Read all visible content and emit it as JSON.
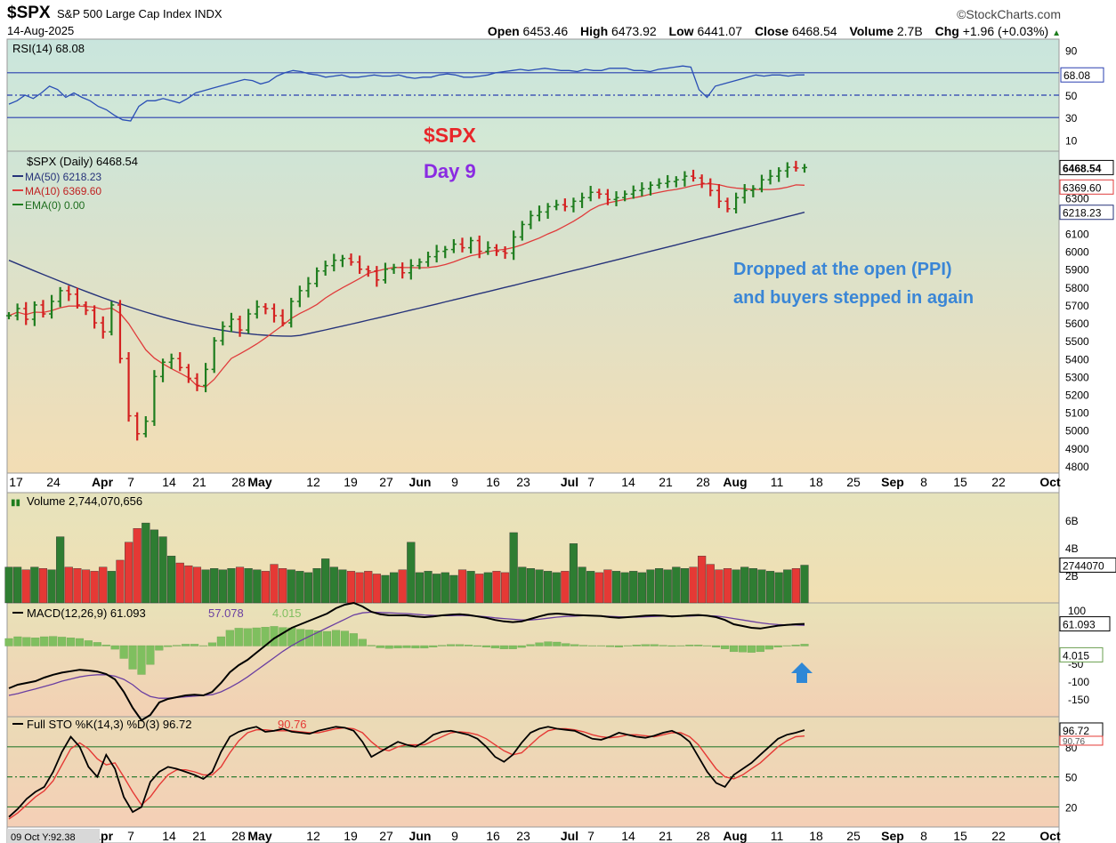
{
  "header": {
    "symbol": "$SPX",
    "name": "S&P 500 Large Cap Index",
    "exchange": "INDX",
    "date": "14-Aug-2025",
    "brand": "©StockCharts.com",
    "open_label": "Open",
    "open": "6453.46",
    "high_label": "High",
    "high": "6473.92",
    "low_label": "Low",
    "low": "6441.07",
    "close_label": "Close",
    "close": "6468.54",
    "volume_label": "Volume",
    "volume": "2.7B",
    "chg_label": "Chg",
    "chg": "+1.96 (+0.03%)"
  },
  "annotations": {
    "title1": "$SPX",
    "title2": "Day 9",
    "note_line1": "Dropped at the open (PPI)",
    "note_line2": "and buyers stepped in again",
    "colors": {
      "title1": "#e8262a",
      "title2": "#8a2be2",
      "note": "#3a86d6",
      "arrow": "#2e87d6"
    }
  },
  "chart_data": [
    {
      "type": "line",
      "panel": "rsi",
      "legend": "RSI(14) 68.08",
      "value": 68.08,
      "ylim": [
        0,
        100
      ],
      "y_ticks": [
        90,
        50,
        30,
        10
      ],
      "reference_lines": [
        70,
        50,
        30
      ],
      "x_index_range": [
        0,
        127
      ],
      "values": [
        42,
        45,
        50,
        47,
        52,
        58,
        55,
        48,
        52,
        48,
        45,
        40,
        37,
        32,
        28,
        27,
        40,
        45,
        45,
        47,
        45,
        43,
        47,
        52,
        54,
        56,
        58,
        60,
        62,
        64,
        63,
        60,
        62,
        67,
        70,
        72,
        71,
        69,
        68,
        66,
        67,
        68,
        66,
        66,
        67,
        68,
        67,
        67,
        68,
        66,
        65,
        66,
        66,
        68,
        69,
        68,
        66,
        66,
        67,
        68,
        70,
        71,
        72,
        73,
        72,
        73,
        74,
        73,
        72,
        72,
        71,
        73,
        72,
        72,
        74,
        74,
        74,
        72,
        72,
        71,
        73,
        74,
        75,
        76,
        75,
        55,
        48,
        58,
        60,
        62,
        64,
        66,
        68,
        67,
        68,
        68,
        67,
        68,
        68.08
      ],
      "color": "#2a4fb5"
    },
    {
      "type": "candlestick",
      "panel": "price",
      "legend": [
        "$SPX (Daily) 6468.54",
        "MA(50) 6218.23",
        "MA(10) 6369.60",
        "EMA(0) 0.00"
      ],
      "ylim": [
        4760,
        6560
      ],
      "y_ticks": [
        6300,
        6100,
        6000,
        5900,
        5800,
        5700,
        5600,
        5500,
        5400,
        5300,
        5200,
        5100,
        5000,
        4900,
        4800
      ],
      "price_labels": {
        "close": "6468.54",
        "ma10": "6369.60",
        "ma50": "6218.23"
      },
      "x_ticks": [
        "17",
        "24",
        "Apr",
        "7",
        "14",
        "21",
        "28",
        "May",
        "12",
        "19",
        "27",
        "Jun",
        "9",
        "16",
        "23",
        "Jul",
        "7",
        "14",
        "21",
        "28",
        "Aug",
        "11",
        "18",
        "25",
        "Sep",
        "8",
        "15",
        "22",
        "Oct"
      ],
      "closes": [
        5640,
        5680,
        5620,
        5700,
        5650,
        5720,
        5780,
        5760,
        5700,
        5670,
        5600,
        5550,
        5700,
        5400,
        5080,
        4980,
        5050,
        5300,
        5380,
        5400,
        5350,
        5290,
        5250,
        5340,
        5500,
        5580,
        5620,
        5560,
        5650,
        5690,
        5680,
        5640,
        5600,
        5720,
        5780,
        5820,
        5890,
        5920,
        5950,
        5960,
        5940,
        5900,
        5890,
        5840,
        5900,
        5910,
        5880,
        5920,
        5940,
        5970,
        6000,
        6010,
        6040,
        6020,
        6060,
        6000,
        6020,
        6000,
        5990,
        6080,
        6150,
        6200,
        6220,
        6250,
        6260,
        6250,
        6280,
        6300,
        6330,
        6320,
        6290,
        6300,
        6320,
        6340,
        6350,
        6370,
        6380,
        6390,
        6400,
        6420,
        6410,
        6380,
        6340,
        6280,
        6238,
        6300,
        6340,
        6350,
        6400,
        6420,
        6450,
        6470,
        6466,
        6468.54
      ],
      "ma50_start": 5950,
      "ma50_end": 6218.23,
      "ma10_end": 6369.6,
      "series_colors": {
        "up": "#1e7d1e",
        "down": "#d42020",
        "ma50": "#26337a",
        "ma10": "#e03b3b"
      }
    },
    {
      "type": "bar",
      "panel": "volume",
      "legend": "Volume 2,744,070,656",
      "value": 2744070656,
      "ylim": [
        0,
        8
      ],
      "y_ticks": [
        "6B",
        "4B",
        "2B"
      ],
      "last_label": "2744070",
      "values_billions": [
        2.6,
        2.6,
        2.4,
        2.6,
        2.5,
        2.4,
        4.8,
        2.6,
        2.5,
        2.4,
        2.3,
        2.6,
        2.3,
        3.1,
        4.4,
        5.4,
        5.8,
        5.3,
        4.8,
        3.4,
        2.9,
        2.7,
        2.6,
        2.4,
        2.5,
        2.4,
        2.5,
        2.6,
        2.5,
        2.4,
        2.3,
        2.8,
        2.5,
        2.4,
        2.3,
        2.2,
        2.5,
        3.2,
        2.6,
        2.4,
        2.3,
        2.2,
        2.3,
        2.1,
        2.0,
        2.2,
        2.4,
        4.4,
        2.2,
        2.3,
        2.1,
        2.2,
        2.0,
        2.4,
        2.3,
        2.1,
        2.2,
        2.3,
        2.2,
        5.1,
        2.6,
        2.5,
        2.4,
        2.3,
        2.2,
        2.3,
        4.3,
        2.6,
        2.3,
        2.2,
        2.4,
        2.3,
        2.2,
        2.3,
        2.2,
        2.4,
        2.5,
        2.4,
        2.6,
        2.5,
        2.6,
        3.4,
        2.8,
        2.4,
        2.5,
        2.4,
        2.6,
        2.5,
        2.4,
        2.3,
        2.2,
        2.4,
        2.5,
        2.74
      ],
      "series_colors": {
        "up": "#2e7d32",
        "down": "#e53935"
      }
    },
    {
      "type": "line",
      "panel": "macd",
      "legend": [
        "MACD(12,26,9) 61.093",
        "57.078",
        "4.015"
      ],
      "values_named": {
        "macd": 61.093,
        "signal": 57.078,
        "histogram": 4.015
      },
      "ylim": [
        -200,
        120
      ],
      "y_ticks": [
        100,
        -50,
        -100,
        -150
      ],
      "macd_values": [
        -120,
        -110,
        -105,
        -100,
        -90,
        -82,
        -76,
        -72,
        -68,
        -70,
        -73,
        -80,
        -95,
        -130,
        -175,
        -210,
        -195,
        -160,
        -150,
        -145,
        -140,
        -138,
        -140,
        -130,
        -105,
        -75,
        -55,
        -40,
        -20,
        0,
        20,
        35,
        50,
        60,
        70,
        80,
        90,
        105,
        115,
        120,
        110,
        95,
        88,
        85,
        85,
        85,
        82,
        80,
        82,
        85,
        87,
        88,
        86,
        82,
        78,
        72,
        68,
        66,
        68,
        75,
        82,
        88,
        90,
        88,
        86,
        85,
        84,
        83,
        80,
        78,
        80,
        82,
        84,
        85,
        84,
        82,
        83,
        85,
        86,
        84,
        80,
        72,
        60,
        55,
        50,
        48,
        52,
        56,
        58,
        60,
        61.093
      ],
      "signal_values": [
        -140,
        -135,
        -128,
        -122,
        -115,
        -108,
        -100,
        -94,
        -88,
        -84,
        -82,
        -82,
        -86,
        -95,
        -110,
        -130,
        -143,
        -148,
        -148,
        -146,
        -144,
        -142,
        -140,
        -138,
        -130,
        -118,
        -104,
        -88,
        -70,
        -52,
        -34,
        -16,
        0,
        14,
        26,
        38,
        50,
        62,
        74,
        86,
        92,
        94,
        93,
        92,
        91,
        90,
        88,
        86,
        85,
        84,
        84,
        85,
        84,
        83,
        81,
        78,
        76,
        74,
        72,
        72,
        74,
        77,
        80,
        82,
        83,
        84,
        84,
        83,
        82,
        81,
        80,
        80,
        81,
        82,
        83,
        83,
        83,
        83,
        84,
        84,
        83,
        80,
        76,
        72,
        68,
        64,
        61,
        59,
        58,
        58,
        57.078
      ],
      "series_colors": {
        "macd": "#000000",
        "signal": "#6a3ea1",
        "histogram": "#7fbf5f"
      }
    },
    {
      "type": "line",
      "panel": "stochastic",
      "legend": [
        "Full STO %K(14,3) %D(3) 96.72",
        "90.76"
      ],
      "values_named": {
        "k": 96.72,
        "d": 90.76
      },
      "ylim": [
        0,
        110
      ],
      "y_ticks": [
        80,
        50,
        20
      ],
      "reference_lines": [
        80,
        50,
        20
      ],
      "last_labels": [
        "96.72",
        "90.76"
      ],
      "k_values": [
        10,
        18,
        28,
        35,
        40,
        55,
        75,
        90,
        80,
        60,
        50,
        72,
        58,
        30,
        15,
        20,
        45,
        55,
        60,
        58,
        55,
        52,
        48,
        55,
        75,
        90,
        95,
        98,
        100,
        95,
        96,
        98,
        95,
        94,
        93,
        96,
        98,
        100,
        99,
        96,
        85,
        70,
        75,
        80,
        85,
        82,
        80,
        85,
        92,
        95,
        96,
        94,
        92,
        88,
        80,
        70,
        65,
        72,
        84,
        94,
        98,
        100,
        98,
        97,
        96,
        92,
        88,
        87,
        90,
        94,
        92,
        90,
        89,
        91,
        94,
        96,
        92,
        85,
        70,
        55,
        44,
        40,
        52,
        58,
        64,
        72,
        80,
        88,
        92,
        94,
        96.72
      ],
      "d_values": [
        8,
        14,
        22,
        30,
        36,
        46,
        62,
        78,
        84,
        78,
        68,
        62,
        64,
        50,
        35,
        22,
        30,
        42,
        52,
        57,
        57,
        55,
        52,
        52,
        60,
        74,
        86,
        94,
        97,
        97,
        96,
        96,
        96,
        95,
        94,
        94,
        96,
        98,
        99,
        98,
        94,
        85,
        78,
        76,
        80,
        82,
        82,
        82,
        86,
        90,
        94,
        95,
        94,
        92,
        88,
        82,
        76,
        72,
        74,
        82,
        90,
        96,
        98,
        98,
        97,
        95,
        92,
        90,
        89,
        90,
        92,
        92,
        91,
        90,
        92,
        94,
        94,
        90,
        82,
        70,
        58,
        50,
        48,
        52,
        58,
        64,
        72,
        80,
        86,
        90,
        90.76
      ],
      "cursor_readout": "09 Oct Y:92.38",
      "series_colors": {
        "k": "#000000",
        "d": "#e53935"
      }
    }
  ]
}
